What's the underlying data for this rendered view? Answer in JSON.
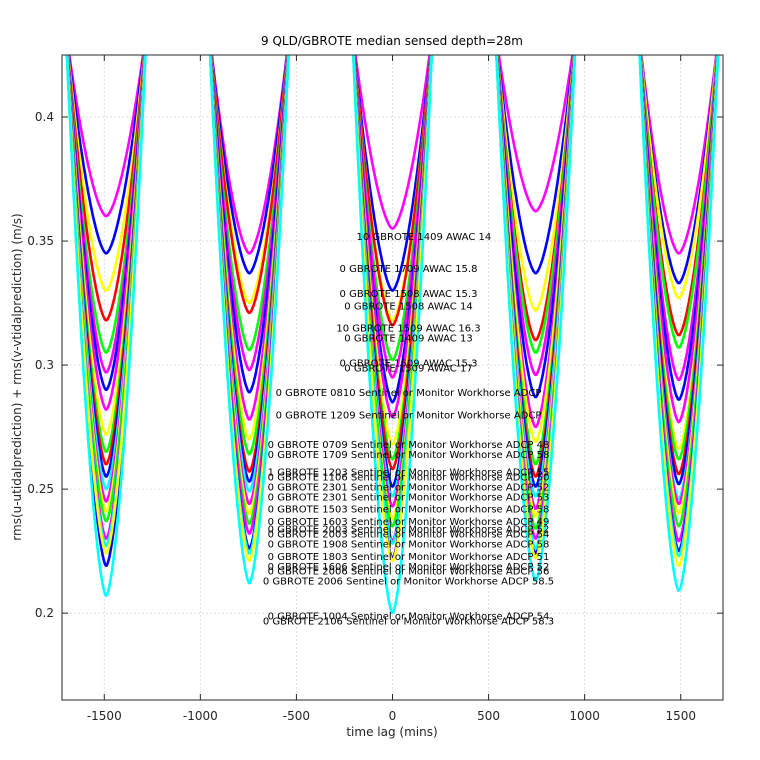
{
  "chart_data": {
    "type": "line",
    "title": "9 QLD/GBROTE median sensed depth=28m",
    "xlabel": "time lag (mins)",
    "ylabel": "rms(u-utidalprediction) + rms(v-vtidalprediction) (m/s)",
    "xlim": [
      -1720,
      1720
    ],
    "ylim": [
      0.165,
      0.425
    ],
    "x_ticks": [
      -1500,
      -1000,
      -500,
      0,
      500,
      1000,
      1500
    ],
    "x_tick_labels": [
      "-1500",
      "-1000",
      "-500",
      "0",
      "500",
      "1000",
      "1500"
    ],
    "y_ticks": [
      0.2,
      0.25,
      0.3,
      0.35,
      0.4
    ],
    "y_tick_labels": [
      "0.2",
      "0.25",
      "0.3",
      "0.35",
      "0.4"
    ],
    "grid": true,
    "centers": [
      -1490,
      -745,
      0,
      745,
      1490
    ],
    "curve_halfwidth_at_top": 210,
    "series": [
      {
        "name": "magenta",
        "color": "#ff00ff",
        "minima": [
          0.36,
          0.345,
          0.355,
          0.362,
          0.345
        ]
      },
      {
        "name": "blue",
        "color": "#0000ff",
        "minima": [
          0.345,
          0.337,
          0.33,
          0.337,
          0.333
        ]
      },
      {
        "name": "yellow",
        "color": "#ffff00",
        "minima": [
          0.33,
          0.325,
          0.318,
          0.322,
          0.327
        ]
      },
      {
        "name": "red",
        "color": "#ff0000",
        "minima": [
          0.318,
          0.321,
          0.316,
          0.31,
          0.312
        ]
      },
      {
        "name": "green",
        "color": "#00ff00",
        "minima": [
          0.305,
          0.306,
          0.302,
          0.305,
          0.307
        ]
      },
      {
        "name": "magenta",
        "color": "#ff00ff",
        "minima": [
          0.297,
          0.298,
          0.295,
          0.296,
          0.294
        ]
      },
      {
        "name": "blue",
        "color": "#0000ff",
        "minima": [
          0.29,
          0.289,
          0.285,
          0.287,
          0.286
        ]
      },
      {
        "name": "magenta",
        "color": "#ff00ff",
        "minima": [
          0.282,
          0.278,
          0.279,
          0.275,
          0.277
        ]
      },
      {
        "name": "yellow",
        "color": "#ffff00",
        "minima": [
          0.272,
          0.27,
          0.268,
          0.269,
          0.266
        ]
      },
      {
        "name": "green",
        "color": "#00ff00",
        "minima": [
          0.265,
          0.264,
          0.262,
          0.26,
          0.262
        ]
      },
      {
        "name": "red",
        "color": "#ff0000",
        "minima": [
          0.26,
          0.257,
          0.258,
          0.255,
          0.256
        ]
      },
      {
        "name": "blue",
        "color": "#0000ff",
        "minima": [
          0.255,
          0.253,
          0.251,
          0.251,
          0.252
        ]
      },
      {
        "name": "cyan",
        "color": "#00ffff",
        "minima": [
          0.25,
          0.249,
          0.247,
          0.247,
          0.246
        ]
      },
      {
        "name": "magenta",
        "color": "#ff00ff",
        "minima": [
          0.245,
          0.244,
          0.243,
          0.242,
          0.244
        ]
      },
      {
        "name": "yellow",
        "color": "#ffff00",
        "minima": [
          0.241,
          0.24,
          0.238,
          0.239,
          0.24
        ]
      },
      {
        "name": "green",
        "color": "#00ff00",
        "minima": [
          0.237,
          0.236,
          0.235,
          0.234,
          0.235
        ]
      },
      {
        "name": "magenta",
        "color": "#ff00ff",
        "minima": [
          0.23,
          0.232,
          0.229,
          0.23,
          0.229
        ]
      },
      {
        "name": "blue",
        "color": "#0000ff",
        "minima": [
          0.219,
          0.226,
          0.222,
          0.224,
          0.225
        ]
      },
      {
        "name": "cyan",
        "color": "#00ffff",
        "minima": [
          0.227,
          0.224,
          0.228,
          0.226,
          0.223
        ]
      },
      {
        "name": "yellow",
        "color": "#ffff00",
        "minima": [
          0.224,
          0.221,
          0.221,
          0.222,
          0.219
        ]
      },
      {
        "name": "cyan",
        "color": "#00ffff",
        "minima": [
          0.207,
          0.212,
          0.2,
          0.213,
          0.209
        ]
      }
    ],
    "annotations": [
      {
        "text": "10 GBROTE 1409 AWAC 14",
        "x": 80,
        "y": 0.3505
      },
      {
        "text": "0 GBROTE 1709 AWAC 15.8",
        "x": 0,
        "y": 0.3375
      },
      {
        "text": "0 GBROTE 1508 AWAC 15.3",
        "x": 0,
        "y": 0.3275
      },
      {
        "text": "0 GBROTE 1508 AWAC 14",
        "x": 0,
        "y": 0.3225
      },
      {
        "text": "10 GBROTE 1509 AWAC 16.3",
        "x": 0,
        "y": 0.3135
      },
      {
        "text": "0 GBROTE 1409 AWAC 13",
        "x": 0,
        "y": 0.3095
      },
      {
        "text": "0 GBROTE 1509 AWAC 15.3",
        "x": 0,
        "y": 0.2995
      },
      {
        "text": "0 GBROTE 1509 AWAC 17",
        "x": 0,
        "y": 0.2975
      },
      {
        "text": "0 GBROTE 0810 Sentinel or Monitor Workhorse ADCP",
        "x": 0,
        "y": 0.2875
      },
      {
        "text": "0 GBROTE 1209 Sentinel or Monitor Workhorse ADCP",
        "x": 0,
        "y": 0.2785
      },
      {
        "text": "0 GBROTE 0709 Sentinel or Monitor Workhorse ADCP 48",
        "x": 0,
        "y": 0.2665
      },
      {
        "text": "0 GBROTE 1709 Sentinel or Monitor Workhorse ADCP 58",
        "x": 0,
        "y": 0.2625
      },
      {
        "text": "1 GBROTE 1203 Sentinel or Monitor Workhorse ADCP 55",
        "x": 0,
        "y": 0.2555
      },
      {
        "text": "0 GBROTE 1106 Sentinel or Monitor Workhorse ADCP 50",
        "x": 0,
        "y": 0.2535
      },
      {
        "text": "0 GBROTE 2301 Sentinel or Monitor Workhorse ADCP 52",
        "x": 0,
        "y": 0.2495
      },
      {
        "text": "0 GBROTE 2301 Sentinel or Monitor Workhorse ADCP 53",
        "x": 0,
        "y": 0.2455
      },
      {
        "text": "0 GBROTE 1503 Sentinel or Monitor Workhorse ADCP 58",
        "x": 0,
        "y": 0.2405
      },
      {
        "text": "0 GBROTE 1603 Sentinel or Monitor Workhorse ADCP 49",
        "x": 0,
        "y": 0.2355
      },
      {
        "text": "0 GBROTE 2003 Sentinel or Monitor Workhorse ADCP 52",
        "x": 0,
        "y": 0.2325
      },
      {
        "text": "0 GBROTE 2003 Sentinel or Monitor Workhorse ADCP 54",
        "x": 0,
        "y": 0.2305
      },
      {
        "text": "0 GBROTE 1908 Sentinel or Monitor Workhorse ADCP 58",
        "x": 0,
        "y": 0.2265
      },
      {
        "text": "0 GBROTE 1803 Sentinel or Monitor Workhorse ADCP 51",
        "x": 0,
        "y": 0.2215
      },
      {
        "text": "0 GBROTE 1606 Sentinel or Monitor Workhorse ADCP 52",
        "x": 0,
        "y": 0.2175
      },
      {
        "text": "0 GBROTE 2006 Sentinel or Monitor Workhorse ADCP 56",
        "x": 0,
        "y": 0.2155
      },
      {
        "text": "0 GBROTE 2006 Sentinel or Monitor Workhorse ADCP 58.5",
        "x": 0,
        "y": 0.2115
      },
      {
        "text": "0 GBROTE 1004 Sentinel or Monitor Workhorse ADCP 54",
        "x": 0,
        "y": 0.1975
      },
      {
        "text": "0 GBROTE 2106 Sentinel or Monitor Workhorse ADCP 58.3",
        "x": 0,
        "y": 0.1955
      }
    ]
  }
}
